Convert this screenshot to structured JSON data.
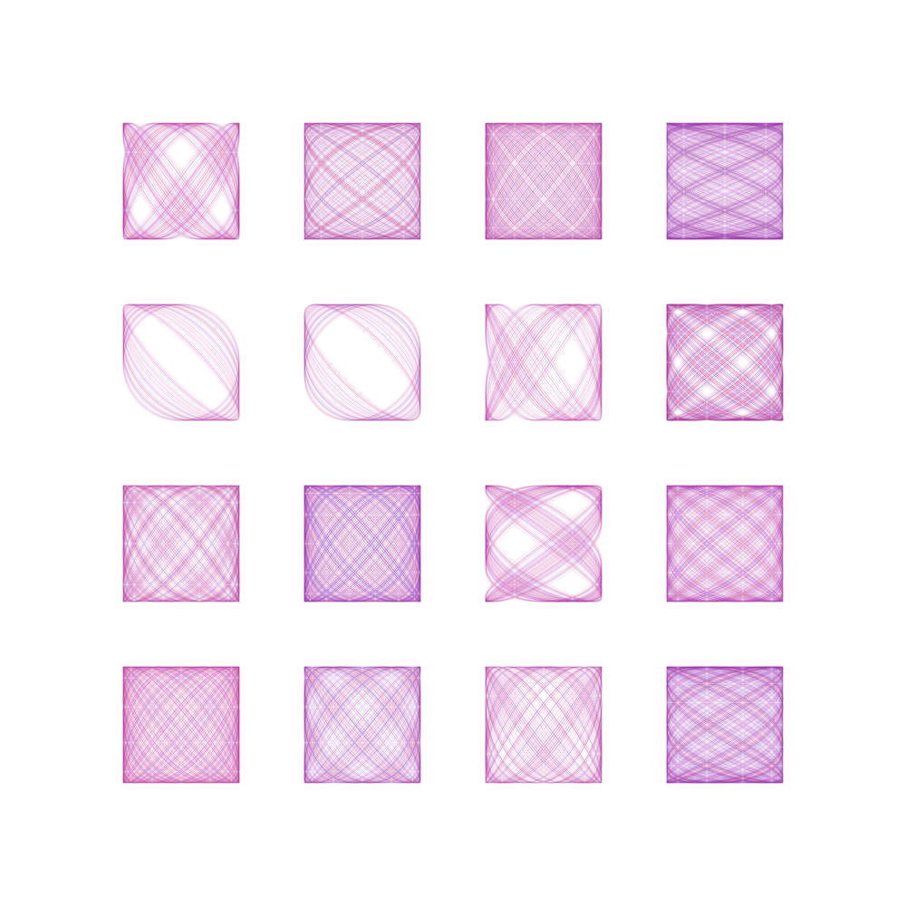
{
  "artwork": {
    "background": "#ffffff",
    "palette": [
      "#7b2ff7",
      "#e0218a",
      "#c2185b",
      "#9c27b0",
      "#5e35b1",
      "#ff4081"
    ],
    "grid": {
      "rows": 4,
      "cols": 4
    },
    "tiles": [
      {
        "a": 3,
        "b": 4,
        "phase": 0.6,
        "density": 1.0
      },
      {
        "a": 5,
        "b": 4,
        "phase": 0.3,
        "density": 1.0
      },
      {
        "a": 5,
        "b": 6,
        "phase": 0.9,
        "density": 1.0
      },
      {
        "a": 9,
        "b": 4,
        "phase": 1.2,
        "density": 1.0
      },
      {
        "a": 1,
        "b": 1,
        "phase": 0.35,
        "density": 1.3
      },
      {
        "a": 1,
        "b": 1,
        "phase": 0.55,
        "density": 1.3
      },
      {
        "a": 2,
        "b": 3,
        "phase": 0.8,
        "density": 1.0
      },
      {
        "a": 6,
        "b": 5,
        "phase": 0.4,
        "density": 1.0
      },
      {
        "a": 4,
        "b": 5,
        "phase": 0.7,
        "density": 1.0
      },
      {
        "a": 6,
        "b": 7,
        "phase": 1.1,
        "density": 1.0
      },
      {
        "a": 4,
        "b": 3,
        "phase": 0.2,
        "density": 1.0
      },
      {
        "a": 6,
        "b": 5,
        "phase": 1.4,
        "density": 1.0
      },
      {
        "a": 5,
        "b": 6,
        "phase": 0.5,
        "density": 1.0
      },
      {
        "a": 5,
        "b": 6,
        "phase": 1.57,
        "density": 0.8
      },
      {
        "a": 3,
        "b": 4,
        "phase": 1.0,
        "density": 0.9
      },
      {
        "a": 8,
        "b": 5,
        "phase": 0.25,
        "density": 1.0
      }
    ]
  }
}
